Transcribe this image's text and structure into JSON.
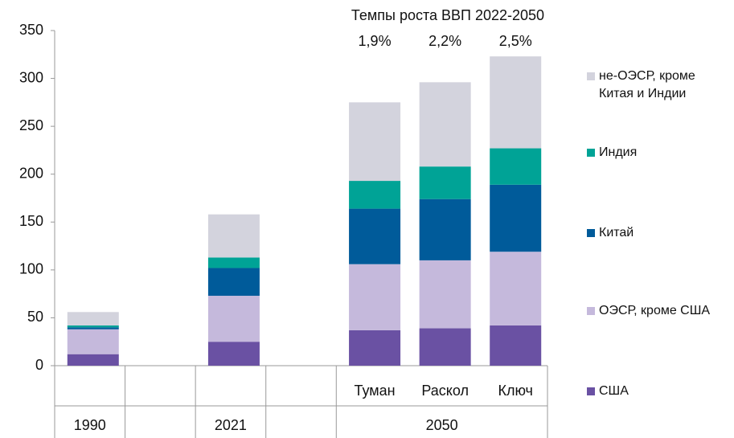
{
  "chart_data": {
    "type": "stacked_bar",
    "title": "Темпы роста ВВП 2022-2050",
    "annotations": [
      "1,9%",
      "2,2%",
      "2,5%"
    ],
    "categories": [
      null,
      null,
      null,
      null,
      "Туман",
      "Раскол",
      "Ключ"
    ],
    "groups": [
      "1990",
      "2021",
      "2050"
    ],
    "series": [
      {
        "name": "США",
        "color": "#6a51a3",
        "values": [
          12,
          null,
          25,
          null,
          37,
          39,
          42
        ]
      },
      {
        "name": "ОЭСР, кроме США",
        "color": "#c5b9dc",
        "values": [
          26,
          null,
          48,
          null,
          69,
          71,
          77
        ]
      },
      {
        "name": "Китай",
        "color": "#005b9a",
        "values": [
          2,
          null,
          29,
          null,
          58,
          64,
          70
        ]
      },
      {
        "name": "Индия",
        "color": "#00a396",
        "values": [
          2,
          null,
          11,
          null,
          29,
          34,
          38
        ]
      },
      {
        "name": "не-ОЭСР, кроме Китая и Индии",
        "color": "#d3d3dd",
        "values": [
          14,
          null,
          45,
          null,
          82,
          88,
          96
        ]
      }
    ],
    "ylim": [
      0,
      350
    ],
    "yticks": [
      0,
      50,
      100,
      150,
      200,
      250,
      300,
      350
    ],
    "grid": false
  }
}
